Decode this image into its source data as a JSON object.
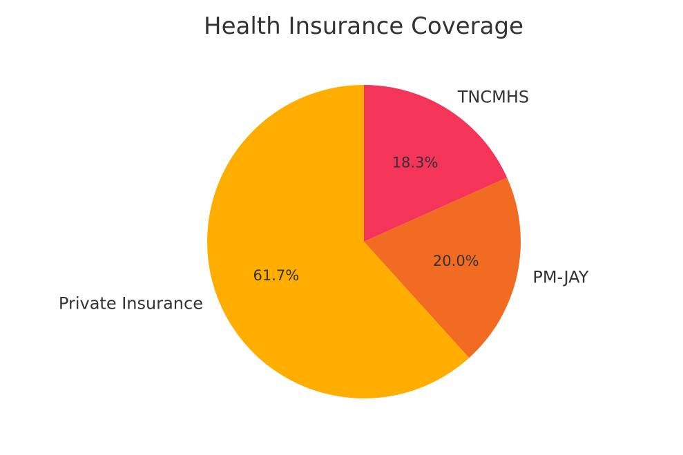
{
  "chart_data": {
    "type": "pie",
    "title": "Health Insurance Coverage",
    "start_angle": "90 degrees (top), counterclockwise",
    "slices": [
      {
        "label": "TNCMHS",
        "value": 18.3,
        "value_label": "18.3%",
        "color": "#F5345A"
      },
      {
        "label": "PM-JAY",
        "value": 20.0,
        "value_label": "20.0%",
        "color": "#F26B23"
      },
      {
        "label": "Private Insurance",
        "value": 61.7,
        "value_label": "61.7%",
        "color": "#FFAE00"
      }
    ]
  }
}
